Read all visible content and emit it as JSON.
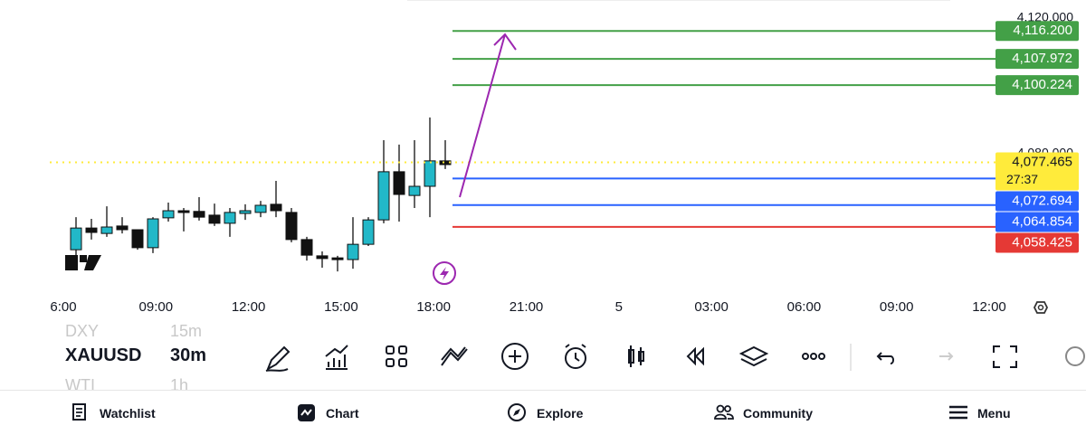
{
  "chart_data": {
    "type": "candlestick",
    "candles": {
      "open": [
        4051.7,
        4058.1,
        4056.5,
        4058.7,
        4057.6,
        4052.3,
        4061.1,
        4063.2,
        4063.0,
        4061.9,
        4059.5,
        4062.4,
        4062.7,
        4065.1,
        4062.7,
        4054.7,
        4049.9,
        4049.3,
        4048.8,
        4053.3,
        4060.5,
        4074.7,
        4067.7,
        4070.4,
        4077.9
      ],
      "high": [
        4061.3,
        4060.8,
        4064.5,
        4061.3,
        4057.6,
        4061.3,
        4065.6,
        4064.0,
        4067.2,
        4065.3,
        4064.0,
        4065.1,
        4066.1,
        4072.0,
        4064.0,
        4055.5,
        4051.2,
        4049.9,
        4061.3,
        4061.3,
        4084.0,
        4082.7,
        4084.0,
        4090.7,
        4084.0
      ],
      "low": [
        4048.0,
        4054.7,
        4055.5,
        4056.5,
        4051.7,
        4050.7,
        4060.0,
        4057.1,
        4060.3,
        4058.7,
        4055.5,
        4060.5,
        4061.3,
        4061.3,
        4053.9,
        4048.5,
        4046.4,
        4045.3,
        4046.1,
        4052.8,
        4059.5,
        4060.0,
        4064.0,
        4061.3,
        4075.5
      ],
      "close": [
        4058.1,
        4056.8,
        4058.4,
        4057.6,
        4052.3,
        4060.8,
        4063.2,
        4062.7,
        4061.3,
        4059.5,
        4062.7,
        4063.2,
        4064.8,
        4063.2,
        4054.7,
        4050.1,
        4049.1,
        4048.8,
        4053.3,
        4060.5,
        4074.7,
        4068.0,
        4070.4,
        4077.9,
        4076.8
      ]
    },
    "up_color": "#22b8c8",
    "down_color": "#111111",
    "ylim": [
      4038.67,
      4125.33
    ],
    "yticks": [
      {
        "value": 4080,
        "label": "4,080.000"
      },
      {
        "value": 4120,
        "label": "4,120.000"
      }
    ],
    "x_labels": [
      "6:00",
      "09:00",
      "12:00",
      "15:00",
      "18:00",
      "21:00",
      "5",
      "03:00",
      "06:00",
      "09:00",
      "12:00"
    ],
    "levels": [
      {
        "value": 4116.2,
        "label": "4,116.200",
        "color": "#43a047"
      },
      {
        "value": 4107.972,
        "label": "4,107.972",
        "color": "#43a047"
      },
      {
        "value": 4100.224,
        "label": "4,100.224",
        "color": "#43a047"
      },
      {
        "value": 4072.694,
        "label": "4,072.694",
        "color": "#2962ff"
      },
      {
        "value": 4064.854,
        "label": "4,064.854",
        "color": "#2962ff"
      },
      {
        "value": 4058.425,
        "label": "4,058.425",
        "color": "#e53935"
      }
    ],
    "current_price": {
      "value": 4077.465,
      "label": "4,077.465",
      "countdown": "27:37",
      "color": "#ffeb3b"
    }
  },
  "toolbar": {
    "symbols": [
      {
        "name": "DXY",
        "interval": "15m"
      },
      {
        "name": "XAUUSD",
        "interval": "30m"
      },
      {
        "name": "WTI",
        "interval": "1h"
      }
    ]
  },
  "nav": [
    "Watchlist",
    "Chart",
    "Explore",
    "Community",
    "Menu"
  ]
}
